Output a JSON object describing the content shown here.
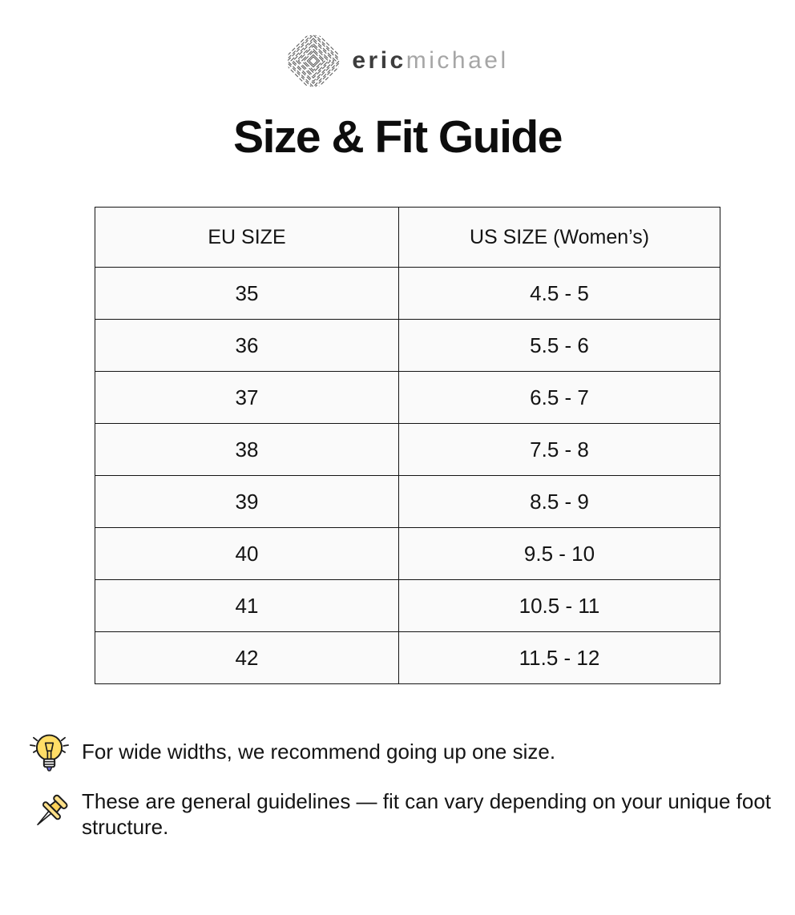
{
  "logo": {
    "icon": "diamond-pattern-logo-icon",
    "brand_first": "eric",
    "brand_second": "michael"
  },
  "title": "Size & Fit Guide",
  "table": {
    "headers": [
      "EU SIZE",
      "US SIZE (Women’s)"
    ],
    "rows": [
      [
        "35",
        "4.5 - 5"
      ],
      [
        "36",
        "5.5 - 6"
      ],
      [
        "37",
        "6.5 - 7"
      ],
      [
        "38",
        "7.5 - 8"
      ],
      [
        "39",
        "8.5 - 9"
      ],
      [
        "40",
        "9.5 - 10"
      ],
      [
        "41",
        "10.5 - 11"
      ],
      [
        "42",
        "11.5 - 12"
      ]
    ]
  },
  "notes": [
    {
      "icon": "lightbulb-icon",
      "text": "For wide widths, we recommend going up one size."
    },
    {
      "icon": "pushpin-icon",
      "text": "These are general guidelines — fit can vary depending on your unique foot structure."
    }
  ],
  "colors": {
    "table_border": "#141414",
    "table_cell_bg": "#fafafa",
    "brand_dark": "#3d3d3d",
    "brand_light": "#a6a6a6",
    "bulb_yellow": "#ffdd67",
    "pin_gold": "#ffe089",
    "text": "#141414"
  }
}
